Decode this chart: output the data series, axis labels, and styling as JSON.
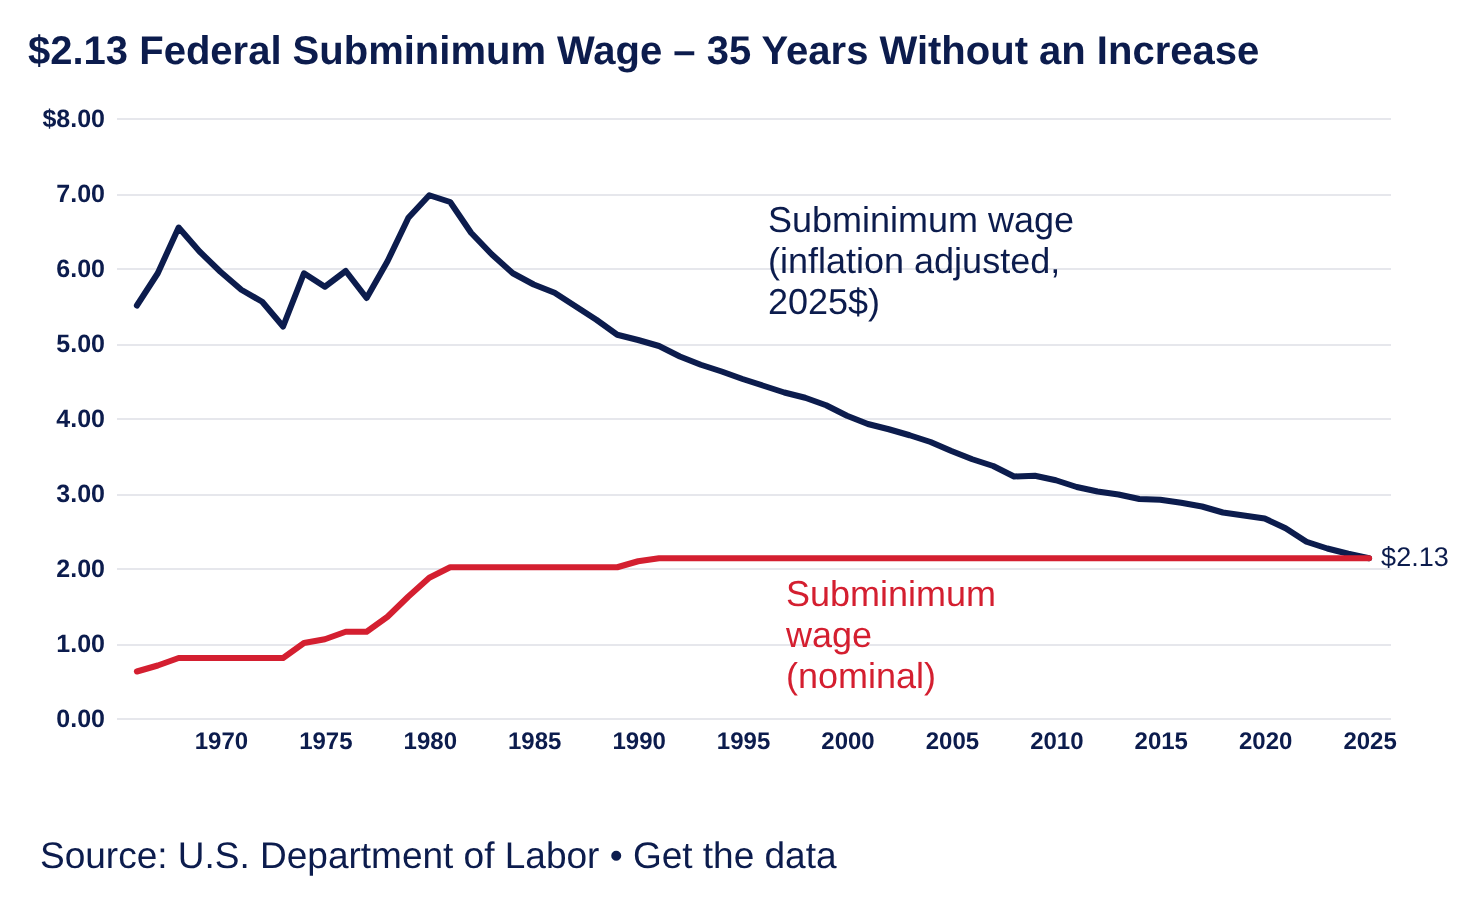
{
  "chart_data": {
    "type": "line",
    "title": "$2.13 Federal Subminimum Wage – 35 Years Without an Increase",
    "x": [
      1966,
      1967,
      1968,
      1969,
      1970,
      1971,
      1972,
      1973,
      1974,
      1975,
      1976,
      1977,
      1978,
      1979,
      1980,
      1981,
      1982,
      1983,
      1984,
      1985,
      1986,
      1987,
      1988,
      1989,
      1990,
      1991,
      1992,
      1993,
      1994,
      1995,
      1996,
      1997,
      1998,
      1999,
      2000,
      2001,
      2002,
      2003,
      2004,
      2005,
      2006,
      2007,
      2008,
      2009,
      2010,
      2011,
      2012,
      2013,
      2014,
      2015,
      2016,
      2017,
      2018,
      2019,
      2020,
      2021,
      2022,
      2023,
      2024,
      2025
    ],
    "series": [
      {
        "name": "Subminimum wage\n(inflation adjusted,\n2025$)",
        "color": "#0c1c4d",
        "values": [
          5.5,
          5.93,
          6.54,
          6.22,
          5.95,
          5.71,
          5.55,
          5.22,
          5.93,
          5.75,
          5.96,
          5.6,
          6.09,
          6.67,
          6.97,
          6.88,
          6.47,
          6.18,
          5.93,
          5.78,
          5.67,
          5.49,
          5.31,
          5.11,
          5.04,
          4.96,
          4.82,
          4.71,
          4.62,
          4.52,
          4.43,
          4.34,
          4.27,
          4.17,
          4.03,
          3.92,
          3.85,
          3.77,
          3.68,
          3.56,
          3.45,
          3.36,
          3.22,
          3.23,
          3.17,
          3.08,
          3.02,
          2.98,
          2.92,
          2.91,
          2.87,
          2.82,
          2.74,
          2.7,
          2.66,
          2.53,
          2.35,
          2.26,
          2.19,
          2.13
        ]
      },
      {
        "name": "Subminimum\nwage\n(nominal)",
        "color": "#d41f30",
        "values": [
          0.62,
          0.7,
          0.8,
          0.8,
          0.8,
          0.8,
          0.8,
          0.8,
          1.0,
          1.05,
          1.15,
          1.15,
          1.35,
          1.62,
          1.87,
          2.01,
          2.01,
          2.01,
          2.01,
          2.01,
          2.01,
          2.01,
          2.01,
          2.01,
          2.09,
          2.13,
          2.13,
          2.13,
          2.13,
          2.13,
          2.13,
          2.13,
          2.13,
          2.13,
          2.13,
          2.13,
          2.13,
          2.13,
          2.13,
          2.13,
          2.13,
          2.13,
          2.13,
          2.13,
          2.13,
          2.13,
          2.13,
          2.13,
          2.13,
          2.13,
          2.13,
          2.13,
          2.13,
          2.13,
          2.13,
          2.13,
          2.13,
          2.13,
          2.13,
          2.13
        ]
      }
    ],
    "xlim": [
      1965,
      2026
    ],
    "xticks": [
      1970,
      1975,
      1980,
      1985,
      1990,
      1995,
      2000,
      2005,
      2010,
      2015,
      2020,
      2025
    ],
    "ylim": [
      0,
      8
    ],
    "yticks": [
      {
        "value": 8,
        "label": "$8.00"
      },
      {
        "value": 7,
        "label": "7.00"
      },
      {
        "value": 6,
        "label": "6.00"
      },
      {
        "value": 5,
        "label": "5.00"
      },
      {
        "value": 4,
        "label": "4.00"
      },
      {
        "value": 3,
        "label": "3.00"
      },
      {
        "value": 2,
        "label": "2.00"
      },
      {
        "value": 1,
        "label": "1.00"
      },
      {
        "value": 0,
        "label": "0.00"
      }
    ],
    "grid": "y",
    "legend": false,
    "line_style": "solid",
    "annotations": [
      {
        "text": "$2.13",
        "x": 2025,
        "y": 2.13
      },
      "Source: U.S. Department of Labor • Get the data"
    ]
  }
}
